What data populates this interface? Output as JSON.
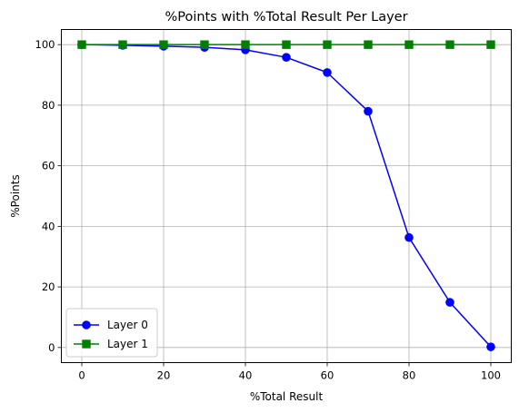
{
  "chart_data": {
    "type": "line",
    "title": "%Points with %Total Result Per Layer",
    "xlabel": "%Total Result",
    "ylabel": "%Points",
    "x": [
      0,
      10,
      20,
      30,
      40,
      50,
      60,
      70,
      80,
      90,
      100
    ],
    "series": [
      {
        "name": "Layer 0",
        "values": [
          100,
          99.8,
          99.5,
          99.1,
          98.3,
          95.8,
          90.8,
          78.0,
          36.3,
          14.9,
          0.2
        ],
        "color": "#0000ff",
        "marker": "circle"
      },
      {
        "name": "Layer 1",
        "values": [
          100,
          100,
          100,
          100,
          100,
          100,
          100,
          100,
          100,
          100,
          100
        ],
        "color": "#008000",
        "marker": "square"
      }
    ],
    "xlim": [
      -5,
      105
    ],
    "ylim": [
      -5,
      105
    ],
    "xticks": [
      0,
      20,
      40,
      60,
      80,
      100
    ],
    "yticks": [
      0,
      20,
      40,
      60,
      80,
      100
    ],
    "xtick_labels": [
      "0",
      "20",
      "40",
      "60",
      "80",
      "100"
    ],
    "ytick_labels": [
      "0",
      "20",
      "40",
      "60",
      "80",
      "100"
    ],
    "grid": true,
    "grid_xticks": [
      0,
      20,
      40,
      60,
      80,
      100
    ],
    "grid_color": "#b0b0b0",
    "legend_position": "lower-left"
  }
}
